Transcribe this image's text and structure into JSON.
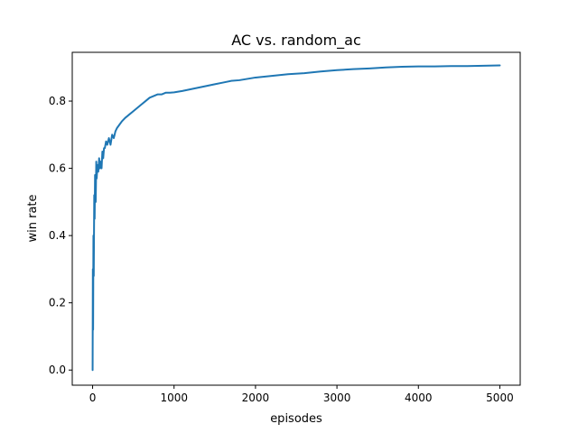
{
  "chart_data": {
    "type": "line",
    "title": "AC vs. random_ac",
    "xlabel": "episodes",
    "ylabel": "win rate",
    "xlim": [
      -250,
      5250
    ],
    "ylim": [
      -0.045,
      0.945
    ],
    "xticks": [
      0,
      1000,
      2000,
      3000,
      4000,
      5000
    ],
    "xtick_labels": [
      "0",
      "1000",
      "2000",
      "3000",
      "4000",
      "5000"
    ],
    "yticks": [
      0.0,
      0.2,
      0.4,
      0.6,
      0.8
    ],
    "ytick_labels": [
      "0.0",
      "0.2",
      "0.4",
      "0.6",
      "0.8"
    ],
    "grid": false,
    "series": [
      {
        "name": "win rate",
        "color": "#1f77b4",
        "x": [
          0,
          3,
          6,
          10,
          14,
          20,
          25,
          30,
          38,
          45,
          50,
          60,
          70,
          80,
          90,
          100,
          110,
          120,
          130,
          140,
          150,
          165,
          180,
          200,
          220,
          240,
          260,
          280,
          300,
          330,
          360,
          400,
          450,
          500,
          550,
          600,
          650,
          700,
          750,
          800,
          850,
          900,
          950,
          1000,
          1100,
          1200,
          1300,
          1400,
          1500,
          1600,
          1700,
          1800,
          1900,
          2000,
          2200,
          2400,
          2600,
          2800,
          3000,
          3200,
          3400,
          3600,
          3800,
          4000,
          4200,
          4400,
          4600,
          4800,
          5000
        ],
        "y": [
          0.0,
          0.3,
          0.12,
          0.4,
          0.28,
          0.52,
          0.45,
          0.58,
          0.5,
          0.62,
          0.57,
          0.61,
          0.59,
          0.63,
          0.6,
          0.62,
          0.6,
          0.65,
          0.63,
          0.66,
          0.66,
          0.68,
          0.67,
          0.69,
          0.67,
          0.7,
          0.69,
          0.71,
          0.72,
          0.73,
          0.74,
          0.75,
          0.76,
          0.77,
          0.78,
          0.79,
          0.8,
          0.81,
          0.815,
          0.82,
          0.82,
          0.825,
          0.825,
          0.826,
          0.83,
          0.835,
          0.84,
          0.845,
          0.85,
          0.855,
          0.86,
          0.862,
          0.866,
          0.87,
          0.875,
          0.88,
          0.883,
          0.888,
          0.892,
          0.895,
          0.897,
          0.9,
          0.902,
          0.903,
          0.903,
          0.904,
          0.904,
          0.905,
          0.906
        ]
      }
    ]
  }
}
